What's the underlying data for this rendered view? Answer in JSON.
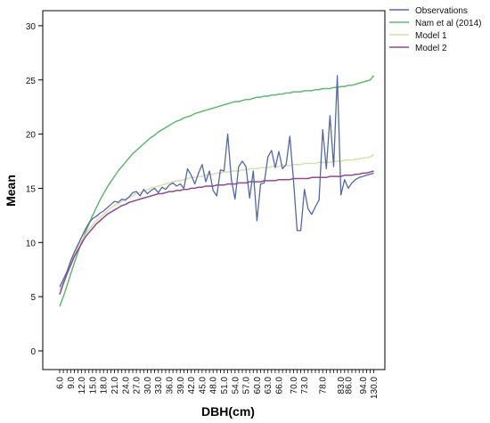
{
  "chart_data": {
    "type": "line",
    "title": "",
    "xlabel": "DBH(cm)",
    "ylabel": "Mean",
    "ylim": [
      -2,
      32
    ],
    "yticks": [
      0,
      5,
      10,
      15,
      20,
      25,
      30
    ],
    "grid": false,
    "legend_position": "top-right, outside plot",
    "x": [
      6,
      7,
      8,
      9,
      10,
      11,
      12,
      13,
      14,
      15,
      16,
      17,
      18,
      19,
      20,
      21,
      22,
      23,
      24,
      25,
      26,
      27,
      28,
      29,
      30,
      31,
      32,
      33,
      34,
      35,
      36,
      37,
      38,
      39,
      40,
      41,
      42,
      43,
      44,
      45,
      46,
      47,
      48,
      49,
      50,
      51,
      52,
      53,
      54,
      55,
      56,
      57,
      58,
      59,
      60,
      61,
      62,
      63,
      64,
      65,
      66,
      67,
      68,
      69,
      70,
      71,
      72,
      73,
      74,
      75,
      76,
      77,
      78,
      79,
      80,
      81,
      82,
      83,
      85,
      86,
      87,
      90,
      92,
      94,
      97,
      99,
      130
    ],
    "x_tick_labels": [
      "6.0",
      "9.0",
      "12.0",
      "15.0",
      "18.0",
      "21.0",
      "24.0",
      "27.0",
      "30.0",
      "33.0",
      "36.0",
      "39.0",
      "42.0",
      "45.0",
      "48.0",
      "51.0",
      "54.0",
      "57.0",
      "60.0",
      "63.0",
      "66.0",
      "70.0",
      "73.0",
      "78.0",
      "83.0",
      "86.0",
      "94.0",
      "130.0"
    ],
    "series": [
      {
        "name": "Observations",
        "color": "#5468a8",
        "values": [
          5.9,
          6.6,
          7.3,
          8.3,
          9.1,
          9.8,
          10.5,
          11.2,
          11.8,
          12.2,
          12.4,
          12.7,
          12.9,
          13.2,
          13.5,
          13.8,
          13.7,
          14.0,
          13.9,
          14.2,
          14.6,
          14.7,
          14.3,
          14.9,
          14.5,
          14.8,
          15.0,
          14.6,
          15.1,
          14.9,
          15.3,
          15.5,
          15.2,
          15.4,
          15.0,
          16.8,
          16.2,
          15.4,
          16.4,
          17.2,
          15.6,
          16.6,
          14.8,
          14.3,
          16.7,
          16.6,
          20.0,
          15.8,
          14.0,
          17.0,
          17.5,
          17.0,
          14.1,
          16.6,
          12.0,
          15.4,
          15.5,
          17.9,
          18.5,
          16.9,
          18.4,
          16.8,
          17.2,
          19.8,
          15.8,
          11.1,
          11.1,
          14.9,
          13.1,
          12.6,
          13.3,
          13.9,
          20.4,
          16.8,
          21.7,
          17.0,
          25.4,
          14.4,
          15.8,
          15.0,
          15.5,
          15.8,
          16.0,
          16.1,
          16.2,
          16.3,
          16.4
        ]
      },
      {
        "name": "Nam et al (2014)",
        "color": "#62b870",
        "values": [
          4.1,
          5.0,
          6.0,
          7.1,
          8.1,
          9.1,
          10.0,
          10.9,
          11.7,
          12.5,
          13.2,
          13.9,
          14.5,
          15.1,
          15.6,
          16.1,
          16.6,
          17.0,
          17.4,
          17.8,
          18.2,
          18.5,
          18.8,
          19.1,
          19.4,
          19.7,
          19.9,
          20.2,
          20.4,
          20.6,
          20.8,
          21.0,
          21.2,
          21.3,
          21.5,
          21.6,
          21.7,
          21.9,
          22.0,
          22.1,
          22.2,
          22.3,
          22.4,
          22.5,
          22.6,
          22.7,
          22.8,
          22.9,
          23.0,
          23.0,
          23.1,
          23.2,
          23.2,
          23.3,
          23.4,
          23.4,
          23.5,
          23.5,
          23.6,
          23.6,
          23.7,
          23.7,
          23.8,
          23.8,
          23.9,
          23.9,
          23.9,
          24.0,
          24.0,
          24.0,
          24.1,
          24.1,
          24.2,
          24.2,
          24.2,
          24.3,
          24.3,
          24.4,
          24.4,
          24.5,
          24.5,
          24.6,
          24.7,
          24.8,
          24.9,
          25.0,
          25.4
        ]
      },
      {
        "name": "Model 1",
        "color": "#dcdcb0",
        "values": [
          5.6,
          6.5,
          7.4,
          8.2,
          8.9,
          9.6,
          10.2,
          10.7,
          11.2,
          11.6,
          12.0,
          12.3,
          12.6,
          12.9,
          13.2,
          13.4,
          13.6,
          13.8,
          14.0,
          14.2,
          14.3,
          14.5,
          14.6,
          14.7,
          14.9,
          15.0,
          15.1,
          15.2,
          15.3,
          15.4,
          15.5,
          15.6,
          15.7,
          15.7,
          15.8,
          15.9,
          16.0,
          16.0,
          16.1,
          16.1,
          16.2,
          16.3,
          16.3,
          16.4,
          16.4,
          16.5,
          16.5,
          16.6,
          16.6,
          16.6,
          16.7,
          16.7,
          16.8,
          16.8,
          16.8,
          16.9,
          16.9,
          16.9,
          17.0,
          17.0,
          17.0,
          17.1,
          17.1,
          17.1,
          17.2,
          17.2,
          17.2,
          17.3,
          17.3,
          17.3,
          17.3,
          17.4,
          17.4,
          17.4,
          17.4,
          17.5,
          17.5,
          17.5,
          17.6,
          17.6,
          17.6,
          17.7,
          17.7,
          17.8,
          17.8,
          17.9,
          18.1
        ]
      },
      {
        "name": "Model 2",
        "color": "#8e4a90",
        "values": [
          5.2,
          6.2,
          7.1,
          7.9,
          8.7,
          9.3,
          9.9,
          10.5,
          10.9,
          11.3,
          11.7,
          12.0,
          12.3,
          12.6,
          12.8,
          13.0,
          13.2,
          13.4,
          13.5,
          13.7,
          13.8,
          13.9,
          14.0,
          14.1,
          14.2,
          14.3,
          14.4,
          14.5,
          14.5,
          14.6,
          14.7,
          14.7,
          14.8,
          14.8,
          14.9,
          14.9,
          15.0,
          15.0,
          15.1,
          15.1,
          15.2,
          15.2,
          15.2,
          15.3,
          15.3,
          15.3,
          15.4,
          15.4,
          15.4,
          15.5,
          15.5,
          15.5,
          15.6,
          15.6,
          15.6,
          15.6,
          15.7,
          15.7,
          15.7,
          15.7,
          15.8,
          15.8,
          15.8,
          15.8,
          15.9,
          15.9,
          15.9,
          15.9,
          15.9,
          16.0,
          16.0,
          16.0,
          16.0,
          16.0,
          16.1,
          16.1,
          16.1,
          16.1,
          16.2,
          16.2,
          16.2,
          16.3,
          16.3,
          16.4,
          16.4,
          16.5,
          16.6
        ]
      }
    ]
  }
}
